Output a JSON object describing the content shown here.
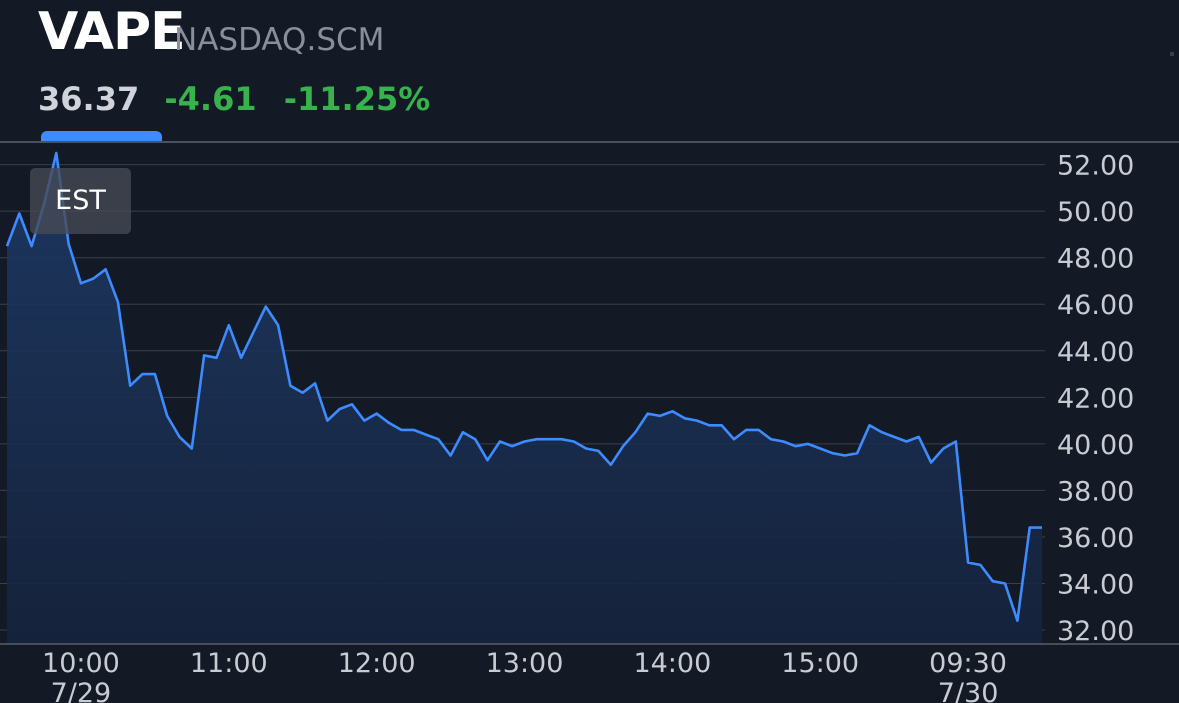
{
  "header": {
    "ticker": "VAPE",
    "exchange": "NASDAQ.SCM",
    "price": "36.37",
    "change": "-4.61",
    "change_pct": "-11.25%"
  },
  "timezone_badge": "EST",
  "colors": {
    "background": "#141926",
    "line": "#3d8cff",
    "positive_text": "#37b24d",
    "grid": "#3a3f4c",
    "axis_text": "#c8cbd2"
  },
  "chart_data": {
    "type": "area",
    "title": "",
    "xlabel": "",
    "ylabel": "",
    "ylim": [
      31.4,
      52.8
    ],
    "yticks": [
      "52.00",
      "50.00",
      "48.00",
      "46.00",
      "44.00",
      "42.00",
      "40.00",
      "38.00",
      "36.00",
      "34.00",
      "32.00"
    ],
    "xticks": [
      {
        "label": "10:00",
        "sub": "7/29",
        "index": 6
      },
      {
        "label": "11:00",
        "sub": "",
        "index": 18
      },
      {
        "label": "12:00",
        "sub": "",
        "index": 30
      },
      {
        "label": "13:00",
        "sub": "",
        "index": 42
      },
      {
        "label": "14:00",
        "sub": "",
        "index": 54
      },
      {
        "label": "15:00",
        "sub": "",
        "index": 66
      },
      {
        "label": "09:30",
        "sub": "7/30",
        "index": 78
      }
    ],
    "grid": true,
    "series": [
      {
        "values": [
          48.5,
          49.9,
          48.5,
          50.3,
          52.5,
          48.6,
          46.9,
          47.1,
          47.5,
          46.1,
          42.5,
          43.0,
          43.0,
          41.2,
          40.3,
          39.8,
          43.8,
          43.7,
          45.1,
          43.7,
          44.8,
          45.9,
          45.1,
          42.5,
          42.2,
          42.6,
          41.0,
          41.5,
          41.7,
          41.0,
          41.3,
          40.9,
          40.6,
          40.6,
          40.4,
          40.2,
          39.5,
          40.5,
          40.2,
          39.3,
          40.1,
          39.9,
          40.1,
          40.2,
          40.2,
          40.2,
          40.1,
          39.8,
          39.7,
          39.1,
          39.9,
          40.5,
          41.3,
          41.2,
          41.4,
          41.1,
          41.0,
          40.8,
          40.8,
          40.2,
          40.6,
          40.6,
          40.2,
          40.1,
          39.9,
          40.0,
          39.8,
          39.6,
          39.5,
          39.6,
          40.8,
          40.5,
          40.3,
          40.1,
          40.3,
          39.2,
          39.8,
          40.1,
          34.9,
          34.8,
          34.1,
          34.0,
          32.4,
          36.4,
          36.4
        ]
      }
    ]
  }
}
